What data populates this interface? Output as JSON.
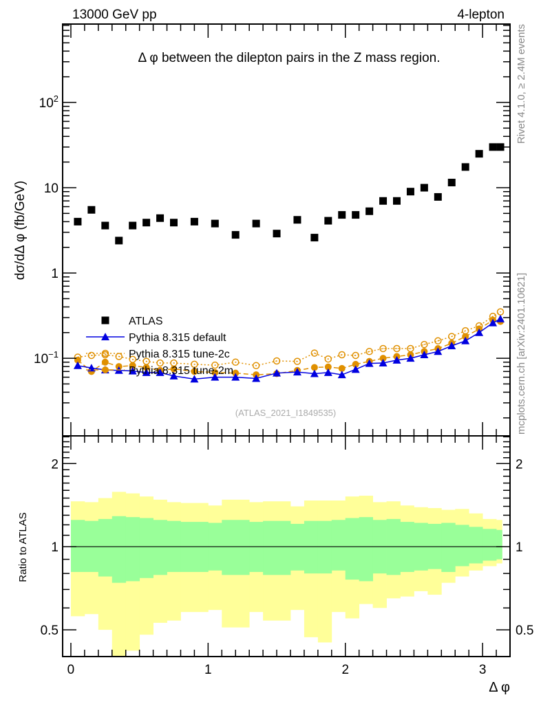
{
  "header": {
    "left": "13000 GeV pp",
    "right": "4-lepton"
  },
  "side_labels": {
    "rivet": "Rivet 4.1.0, ≥ 2.4M events",
    "mcplots": "mcplots.cern.ch [arXiv:2401.10621]"
  },
  "chart_data": [
    {
      "type": "scatter",
      "title": "Δ φ between the dilepton pairs in the Z mass region.",
      "xlabel": "Δ φ",
      "ylabel": "dσ/dΔ φ (fb/GeV)",
      "yscale": "log",
      "xlim": [
        -0.06,
        3.2
      ],
      "ylim": [
        0.0123,
        830
      ],
      "ytick_labels": [
        "10^-1",
        "1",
        "10",
        "10^2"
      ],
      "yticks": [
        0.1,
        1,
        10,
        100
      ],
      "watermark": "(ATLAS_2021_I1849535)",
      "legend": {
        "placement": "lower-left",
        "entries": [
          "ATLAS",
          "Pythia 8.315 default",
          "Pythia 8.315 tune-2c",
          "Pythia 8.315 tune-2m"
        ]
      },
      "x": [
        0.05,
        0.15,
        0.25,
        0.35,
        0.45,
        0.55,
        0.65,
        0.75,
        0.9,
        1.05,
        1.2,
        1.35,
        1.5,
        1.65,
        1.775,
        1.875,
        1.975,
        2.075,
        2.175,
        2.275,
        2.375,
        2.475,
        2.575,
        2.675,
        2.775,
        2.875,
        2.975,
        3.075,
        3.13
      ],
      "series": [
        {
          "name": "ATLAS",
          "color": "#000000",
          "marker": "square",
          "values": [
            4.0,
            5.5,
            3.6,
            2.4,
            3.6,
            3.9,
            4.4,
            3.9,
            4.0,
            3.8,
            2.8,
            3.8,
            2.9,
            4.2,
            2.6,
            4.1,
            4.8,
            4.8,
            5.3,
            7.0,
            7.0,
            9.0,
            10.0,
            7.8,
            11.5,
            17.5,
            25.0,
            30.0,
            30.0
          ]
        },
        {
          "name": "Pythia 8.315 default",
          "color": "#0000e0",
          "marker": "triangle",
          "line": "solid",
          "values": [
            0.082,
            0.077,
            0.073,
            0.072,
            0.071,
            0.068,
            0.068,
            0.062,
            0.057,
            0.06,
            0.06,
            0.058,
            0.067,
            0.069,
            0.066,
            0.068,
            0.064,
            0.074,
            0.087,
            0.088,
            0.095,
            0.1,
            0.11,
            0.12,
            0.14,
            0.16,
            0.2,
            0.26,
            0.29
          ]
        },
        {
          "name": "Pythia 8.315 tune-2c",
          "color": "#e09000",
          "marker": "open-circle",
          "line": "dotted",
          "values": [
            0.103,
            0.108,
            0.11,
            0.105,
            0.097,
            0.092,
            0.088,
            0.088,
            0.085,
            0.083,
            0.09,
            0.082,
            0.093,
            0.092,
            0.115,
            0.098,
            0.11,
            0.108,
            0.12,
            0.13,
            0.13,
            0.13,
            0.145,
            0.16,
            0.18,
            0.21,
            0.24,
            0.31,
            0.35
          ]
        },
        {
          "name": "Pythia 8.315 tune-2m",
          "color": "#e09000",
          "marker": "filled-circle",
          "line": "dashed",
          "values": [
            0.095,
            0.07,
            0.09,
            0.08,
            0.082,
            0.078,
            0.072,
            0.075,
            0.07,
            0.068,
            0.067,
            0.064,
            0.066,
            0.072,
            0.078,
            0.079,
            0.076,
            0.085,
            0.092,
            0.1,
            0.105,
            0.11,
            0.12,
            0.13,
            0.15,
            0.18,
            0.22,
            0.28,
            0.27
          ]
        }
      ]
    },
    {
      "type": "area",
      "ylabel": "Ratio to ATLAS",
      "yscale": "log",
      "ylim": [
        0.4,
        2.52
      ],
      "yticks": [
        0.5,
        1,
        2
      ],
      "ytick_labels": [
        "0.5",
        "1",
        "2"
      ],
      "xticks": [
        0,
        1,
        2,
        3
      ],
      "xtick_labels": [
        "0",
        "1",
        "2",
        "3"
      ],
      "bin_edges": [
        0,
        0.1,
        0.2,
        0.3,
        0.4,
        0.5,
        0.6,
        0.7,
        0.8,
        1.0,
        1.1,
        1.3,
        1.4,
        1.6,
        1.7,
        1.8,
        1.9,
        2.0,
        2.1,
        2.2,
        2.3,
        2.4,
        2.5,
        2.6,
        2.7,
        2.8,
        2.9,
        3.0,
        3.1,
        3.1416
      ],
      "band_outer": {
        "color": "#ffff99",
        "upper": [
          1.46,
          1.45,
          1.5,
          1.58,
          1.56,
          1.52,
          1.48,
          1.45,
          1.44,
          1.41,
          1.48,
          1.45,
          1.46,
          1.4,
          1.47,
          1.47,
          1.47,
          1.52,
          1.53,
          1.45,
          1.46,
          1.41,
          1.39,
          1.38,
          1.36,
          1.37,
          1.32,
          1.26,
          1.25,
          1.2
        ],
        "lower": [
          0.56,
          0.57,
          0.5,
          0.4,
          0.42,
          0.48,
          0.53,
          0.54,
          0.58,
          0.59,
          0.51,
          0.58,
          0.54,
          0.59,
          0.47,
          0.45,
          0.58,
          0.55,
          0.62,
          0.6,
          0.65,
          0.66,
          0.69,
          0.67,
          0.74,
          0.78,
          0.82,
          0.85,
          0.87,
          0.78
        ]
      },
      "band_inner": {
        "color": "#99ff99",
        "upper": [
          1.25,
          1.24,
          1.26,
          1.29,
          1.28,
          1.27,
          1.25,
          1.24,
          1.23,
          1.22,
          1.25,
          1.23,
          1.24,
          1.21,
          1.24,
          1.24,
          1.25,
          1.27,
          1.28,
          1.25,
          1.26,
          1.23,
          1.22,
          1.21,
          1.22,
          1.2,
          1.18,
          1.16,
          1.15,
          1.12
        ],
        "lower": [
          0.81,
          0.81,
          0.78,
          0.74,
          0.75,
          0.77,
          0.79,
          0.81,
          0.81,
          0.82,
          0.79,
          0.81,
          0.79,
          0.82,
          0.8,
          0.8,
          0.82,
          0.76,
          0.75,
          0.8,
          0.79,
          0.81,
          0.82,
          0.83,
          0.81,
          0.85,
          0.87,
          0.89,
          0.9,
          0.87
        ]
      }
    }
  ]
}
